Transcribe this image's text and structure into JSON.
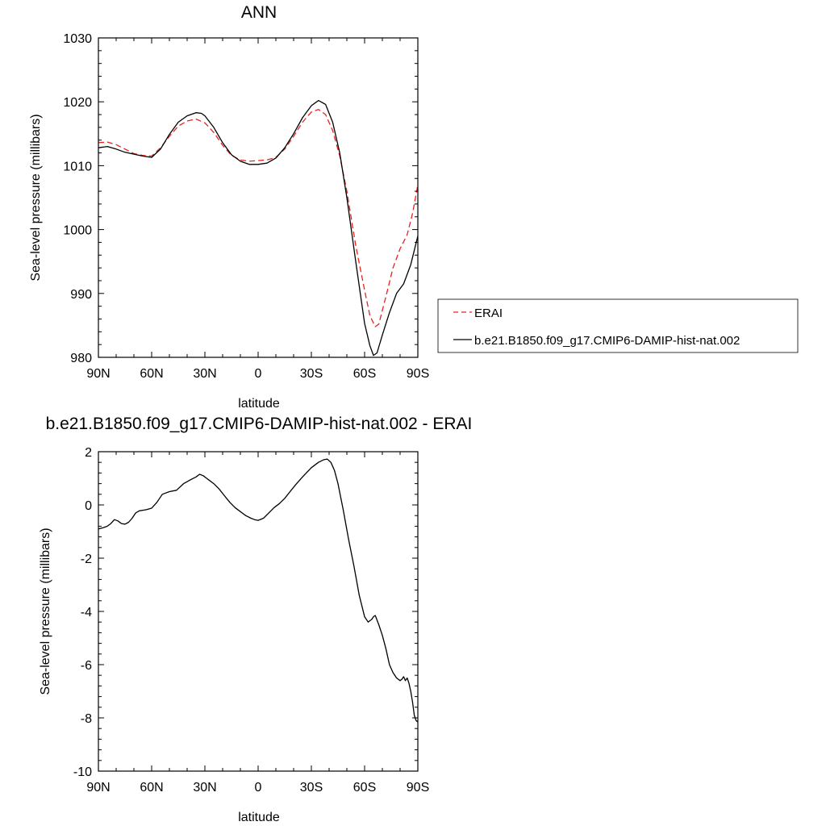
{
  "colors": {
    "erai": "#e8211e",
    "model": "#000000"
  },
  "chart_data": [
    {
      "type": "line",
      "title": "ANN",
      "xlabel": "latitude",
      "ylabel": "Sea-level pressure (millibars)",
      "xlim": [
        -90,
        90
      ],
      "ylim": [
        980,
        1030
      ],
      "xticks": [
        {
          "v": -90,
          "label": "90N"
        },
        {
          "v": -60,
          "label": "60N"
        },
        {
          "v": -30,
          "label": "30N"
        },
        {
          "v": 0,
          "label": "0"
        },
        {
          "v": 30,
          "label": "30S"
        },
        {
          "v": 60,
          "label": "60S"
        },
        {
          "v": 90,
          "label": "90S"
        }
      ],
      "yticks": [
        {
          "v": 980,
          "label": "980"
        },
        {
          "v": 990,
          "label": "990"
        },
        {
          "v": 1000,
          "label": "1000"
        },
        {
          "v": 1010,
          "label": "1010"
        },
        {
          "v": 1020,
          "label": "1020"
        },
        {
          "v": 1030,
          "label": "1030"
        }
      ],
      "legend_position": "right",
      "series": [
        {
          "name": "ERAI",
          "style": "dashed",
          "color": "#e8211e",
          "x": [
            -90,
            -85,
            -80,
            -75,
            -70,
            -65,
            -60,
            -55,
            -50,
            -45,
            -40,
            -35,
            -30,
            -25,
            -20,
            -15,
            -10,
            -5,
            0,
            5,
            10,
            15,
            20,
            25,
            30,
            34,
            38,
            42,
            46,
            50,
            55,
            60,
            63,
            66,
            68,
            72,
            76,
            80,
            84,
            87,
            90
          ],
          "y": [
            1013.6,
            1013.7,
            1013.3,
            1012.6,
            1011.9,
            1011.6,
            1011.5,
            1012.8,
            1014.6,
            1016.2,
            1017.0,
            1017.3,
            1016.7,
            1015.2,
            1013.2,
            1011.6,
            1010.9,
            1010.7,
            1010.8,
            1010.9,
            1011.3,
            1012.6,
            1014.6,
            1016.8,
            1018.4,
            1018.8,
            1018.0,
            1015.5,
            1011.5,
            1006.0,
            997.5,
            990.5,
            986.5,
            984.8,
            985.2,
            989.5,
            994.0,
            997.0,
            999.2,
            1002.5,
            1007.0
          ]
        },
        {
          "name": "b.e21.B1850.f09_g17.CMIP6-DAMIP-hist-nat.002",
          "style": "solid",
          "color": "#000000",
          "x": [
            -90,
            -85,
            -80,
            -75,
            -70,
            -65,
            -60,
            -55,
            -50,
            -45,
            -40,
            -35,
            -32,
            -30,
            -25,
            -20,
            -15,
            -10,
            -5,
            0,
            5,
            10,
            15,
            20,
            25,
            30,
            34,
            38,
            42,
            46,
            50,
            55,
            60,
            63,
            65,
            67,
            70,
            74,
            78,
            82,
            86,
            90
          ],
          "y": [
            1012.8,
            1013.0,
            1012.6,
            1012.1,
            1011.8,
            1011.5,
            1011.3,
            1012.6,
            1014.9,
            1016.8,
            1017.8,
            1018.3,
            1018.2,
            1017.8,
            1016.0,
            1013.6,
            1011.7,
            1010.7,
            1010.2,
            1010.2,
            1010.4,
            1011.2,
            1012.8,
            1015.0,
            1017.5,
            1019.4,
            1020.2,
            1019.6,
            1016.8,
            1012.0,
            1005.0,
            995.0,
            985.3,
            981.8,
            980.3,
            980.7,
            983.5,
            987.0,
            990.0,
            991.5,
            994.5,
            999.0
          ]
        }
      ]
    },
    {
      "type": "line",
      "title": "b.e21.B1850.f09_g17.CMIP6-DAMIP-hist-nat.002 - ERAI",
      "xlabel": "latitude",
      "ylabel": "Sea-level pressure (millibars)",
      "xlim": [
        -90,
        90
      ],
      "ylim": [
        -10,
        2
      ],
      "xticks": [
        {
          "v": -90,
          "label": "90N"
        },
        {
          "v": -60,
          "label": "60N"
        },
        {
          "v": -30,
          "label": "30N"
        },
        {
          "v": 0,
          "label": "0"
        },
        {
          "v": 30,
          "label": "30S"
        },
        {
          "v": 60,
          "label": "60S"
        },
        {
          "v": 90,
          "label": "90S"
        }
      ],
      "yticks": [
        {
          "v": -10,
          "label": "-10"
        },
        {
          "v": -8,
          "label": "-8"
        },
        {
          "v": -6,
          "label": "-6"
        },
        {
          "v": -4,
          "label": "-4"
        },
        {
          "v": -2,
          "label": "-2"
        },
        {
          "v": 0,
          "label": "0"
        },
        {
          "v": 2,
          "label": "2"
        }
      ],
      "series": [
        {
          "style": "solid",
          "color": "#000000",
          "x": [
            -90,
            -87,
            -85,
            -83,
            -81,
            -79,
            -77,
            -75,
            -73,
            -71,
            -69,
            -67,
            -65,
            -63,
            -60,
            -57,
            -54,
            -50,
            -46,
            -42,
            -38,
            -35,
            -33,
            -31,
            -29,
            -27,
            -25,
            -22,
            -19,
            -16,
            -13,
            -10,
            -7,
            -4,
            -2,
            0,
            3,
            6,
            9,
            12,
            15,
            18,
            21,
            25,
            30,
            34,
            37,
            39,
            41,
            43,
            45,
            48,
            51,
            54,
            57,
            60,
            62,
            63,
            64,
            65,
            66,
            68,
            70,
            72,
            74,
            76,
            78,
            80,
            81,
            82,
            83,
            84,
            85,
            86,
            87,
            88,
            89,
            90
          ],
          "y": [
            -0.9,
            -0.85,
            -0.8,
            -0.7,
            -0.55,
            -0.6,
            -0.7,
            -0.72,
            -0.65,
            -0.5,
            -0.3,
            -0.22,
            -0.2,
            -0.18,
            -0.12,
            0.1,
            0.4,
            0.5,
            0.55,
            0.8,
            0.95,
            1.05,
            1.15,
            1.1,
            1.0,
            0.9,
            0.8,
            0.6,
            0.35,
            0.1,
            -0.1,
            -0.25,
            -0.4,
            -0.5,
            -0.55,
            -0.58,
            -0.5,
            -0.3,
            -0.1,
            0.05,
            0.25,
            0.5,
            0.75,
            1.05,
            1.4,
            1.6,
            1.7,
            1.72,
            1.6,
            1.3,
            0.8,
            -0.2,
            -1.3,
            -2.3,
            -3.4,
            -4.2,
            -4.4,
            -4.35,
            -4.3,
            -4.2,
            -4.15,
            -4.5,
            -4.9,
            -5.4,
            -6.0,
            -6.3,
            -6.5,
            -6.6,
            -6.55,
            -6.45,
            -6.6,
            -6.5,
            -6.7,
            -7.0,
            -7.4,
            -7.9,
            -8.1,
            -8.15
          ]
        }
      ]
    }
  ]
}
